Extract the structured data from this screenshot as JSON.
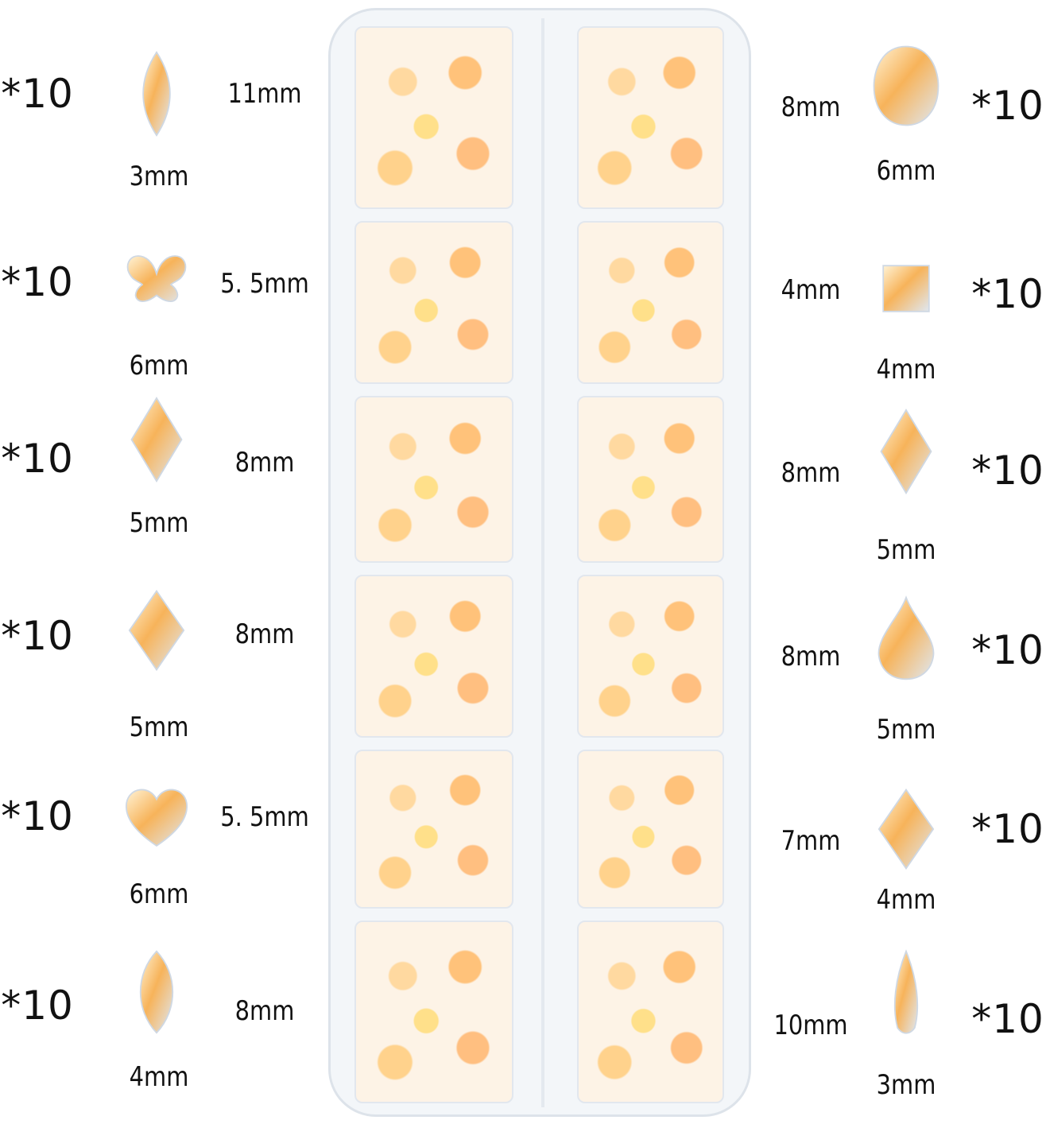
{
  "left": [
    {
      "count": "*10",
      "shape": "marquise",
      "length": "11mm",
      "width": "3mm"
    },
    {
      "count": "*10",
      "shape": "butterfly",
      "length": "5. 5mm",
      "width": "6mm"
    },
    {
      "count": "*10",
      "shape": "kite",
      "length": "8mm",
      "width": "5mm"
    },
    {
      "count": "*10",
      "shape": "rhombus",
      "length": "8mm",
      "width": "5mm"
    },
    {
      "count": "*10",
      "shape": "heart",
      "length": "5. 5mm",
      "width": "6mm"
    },
    {
      "count": "*10",
      "shape": "horse-eye",
      "length": "8mm",
      "width": "4mm"
    }
  ],
  "right": [
    {
      "count": "*10",
      "shape": "oval",
      "length": "8mm",
      "width": "6mm"
    },
    {
      "count": "*10",
      "shape": "square",
      "length": "4mm",
      "width": "4mm"
    },
    {
      "count": "*10",
      "shape": "kite",
      "length": "8mm",
      "width": "5mm"
    },
    {
      "count": "*10",
      "shape": "teardrop",
      "length": "8mm",
      "width": "5mm"
    },
    {
      "count": "*10",
      "shape": "rhombus",
      "length": "7mm",
      "width": "4mm"
    },
    {
      "count": "*10",
      "shape": "raindrop",
      "length": "10mm",
      "width": "3mm"
    }
  ],
  "colors": {
    "gem": "#f7b35a",
    "gem_light": "#ffe2a8",
    "tray": "#f3f6f9"
  }
}
